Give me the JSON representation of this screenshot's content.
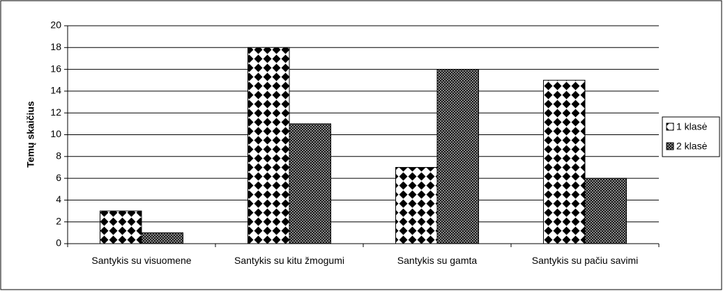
{
  "chart_data": {
    "type": "bar",
    "y_label": "Temų skaičius",
    "categories": [
      "Santykis su visuomene",
      "Santykis su kitu žmogumi",
      "Santykis su gamta",
      "Santykis su pačiu savimi"
    ],
    "series": [
      {
        "name": "1 klasė",
        "color": "#000000",
        "pattern": "diamonds",
        "values": [
          3,
          18,
          7,
          15
        ]
      },
      {
        "name": "2 klasė",
        "color": "#000000",
        "pattern": "crosshatch",
        "values": [
          1,
          11,
          16,
          6
        ]
      }
    ],
    "ylim": [
      0,
      20
    ],
    "yticks": [
      0,
      2,
      4,
      6,
      8,
      10,
      12,
      14,
      16,
      18,
      20
    ],
    "grid": true,
    "legend": "right"
  }
}
